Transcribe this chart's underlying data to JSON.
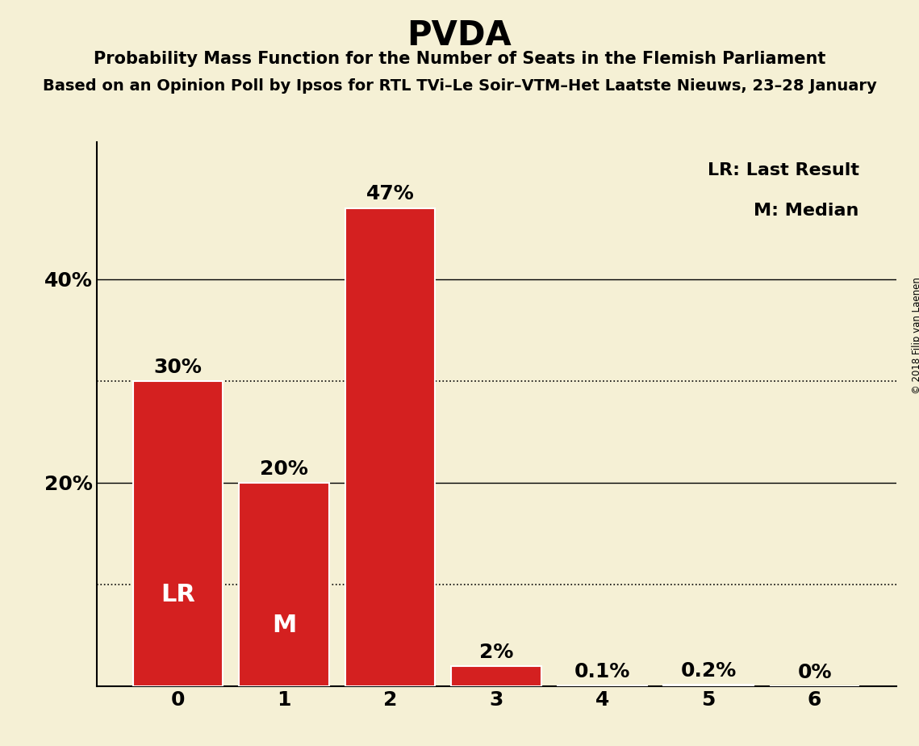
{
  "title": "PVDA",
  "subtitle": "Probability Mass Function for the Number of Seats in the Flemish Parliament",
  "subsubtitle": "Based on an Opinion Poll by Ipsos for RTL TVi–Le Soir–VTM–Het Laatste Nieuws, 23–28 January",
  "copyright": "© 2018 Filip van Laenen",
  "categories": [
    0,
    1,
    2,
    3,
    4,
    5,
    6
  ],
  "values": [
    0.3,
    0.2,
    0.47,
    0.02,
    0.001,
    0.002,
    0.0
  ],
  "bar_color": "#d42020",
  "background_color": "#f5f0d5",
  "bar_labels": [
    "30%",
    "20%",
    "47%",
    "2%",
    "0.1%",
    "0.2%",
    "0%"
  ],
  "bar_annotations": [
    "LR",
    "M",
    "",
    "",
    "",
    "",
    ""
  ],
  "yticks": [
    0.0,
    0.2,
    0.4
  ],
  "ytick_labels": [
    "",
    "20%",
    "40%"
  ],
  "ylim": [
    0,
    0.535
  ],
  "dotted_lines": [
    0.3,
    0.1
  ],
  "solid_lines": [
    0.2,
    0.4
  ],
  "legend_text": [
    "LR: Last Result",
    "M: Median"
  ],
  "title_fontsize": 30,
  "subtitle_fontsize": 15,
  "subsubtitle_fontsize": 14,
  "bar_label_fontsize": 18,
  "bar_annot_fontsize": 22,
  "axis_label_fontsize": 18,
  "legend_fontsize": 16
}
